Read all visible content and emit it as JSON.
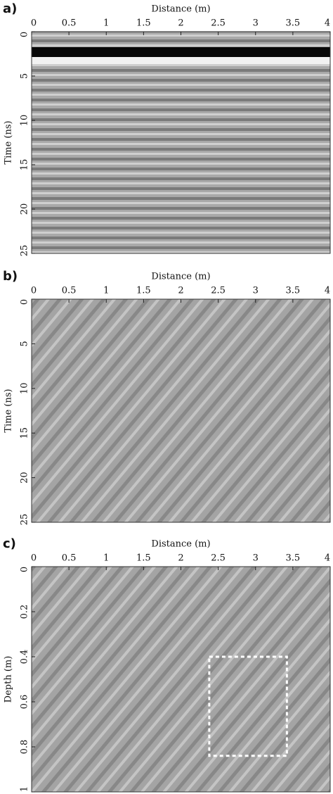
{
  "chart_data": [
    {
      "type": "image",
      "panel_label": "a)",
      "xlabel": "Distance (m)",
      "ylabel": "Time (ns)",
      "xlim": [
        0,
        4
      ],
      "xticks": [
        0,
        0.5,
        1,
        1.5,
        2,
        2.5,
        3,
        3.5,
        4
      ],
      "ylim": [
        0,
        25
      ],
      "yticks": [
        0,
        5,
        10,
        15,
        20,
        25
      ],
      "y_reversed": true,
      "x_axis_position": "top"
    },
    {
      "type": "image",
      "panel_label": "b)",
      "xlabel": "Distance (m)",
      "ylabel": "Time (ns)",
      "xlim": [
        0,
        4
      ],
      "xticks": [
        0,
        0.5,
        1,
        1.5,
        2,
        2.5,
        3,
        3.5,
        4
      ],
      "ylim": [
        0,
        25
      ],
      "yticks": [
        0,
        5,
        10,
        15,
        20,
        25
      ],
      "y_reversed": true,
      "x_axis_position": "top"
    },
    {
      "type": "image",
      "panel_label": "c)",
      "xlabel": "Distance (m)",
      "ylabel": "Depth (m)",
      "xlim": [
        0,
        4
      ],
      "xticks": [
        0,
        0.5,
        1,
        1.5,
        2,
        2.5,
        3,
        3.5,
        4
      ],
      "ylim": [
        0,
        1
      ],
      "yticks": [
        0,
        0.2,
        0.4,
        0.6,
        0.8,
        1
      ],
      "y_reversed": true,
      "x_axis_position": "top",
      "highlight_box": {
        "x": [
          2.38,
          3.42
        ],
        "y": [
          0.4,
          0.84
        ],
        "color": "#ffffff"
      }
    }
  ]
}
